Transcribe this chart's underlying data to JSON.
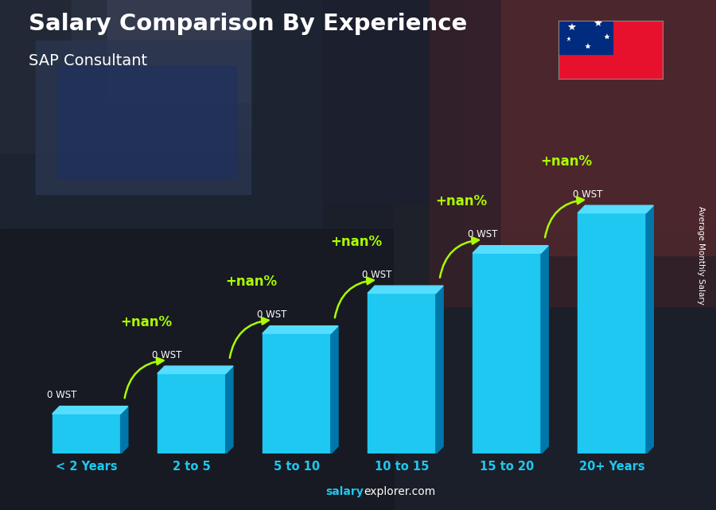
{
  "title": "Salary Comparison By Experience",
  "subtitle": "SAP Consultant",
  "ylabel": "Average Monthly Salary",
  "categories": [
    "< 2 Years",
    "2 to 5",
    "5 to 10",
    "10 to 15",
    "15 to 20",
    "20+ Years"
  ],
  "values": [
    1,
    2,
    3,
    4,
    5,
    6
  ],
  "bar_front_color": "#1ec8f0",
  "bar_side_color": "#0077aa",
  "bar_top_color": "#55ddff",
  "bg_color": "#1a1f2e",
  "title_color": "#ffffff",
  "subtitle_color": "#ffffff",
  "category_color": "#1ec8f0",
  "salary_label_color": "#ffffff",
  "pct_label_color": "#aaff00",
  "arrow_color": "#aaff00",
  "salary_labels": [
    "0 WST",
    "0 WST",
    "0 WST",
    "0 WST",
    "0 WST",
    "0 WST"
  ],
  "pct_labels": [
    "+nan%",
    "+nan%",
    "+nan%",
    "+nan%",
    "+nan%"
  ],
  "watermark_bold": "salary",
  "watermark_rest": "explorer.com",
  "watermark_bold_color": "#1ec8f0",
  "watermark_rest_color": "#ffffff",
  "side_label": "Average Monthly Salary",
  "flag_red": "#e8112d",
  "flag_blue": "#002b7f",
  "flag_white": "#ffffff"
}
